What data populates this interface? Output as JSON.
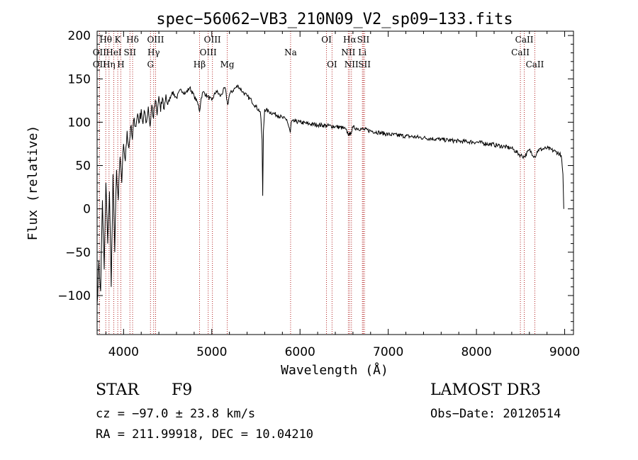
{
  "chart_data": {
    "type": "line",
    "title": "spec−56062−VB3_210N09_V2_sp09−133.fits",
    "xlabel": "Wavelength (Å)",
    "ylabel": "Flux (relative)",
    "xlim": [
      3700,
      9100
    ],
    "ylim": [
      -145,
      205
    ],
    "xticks": [
      4000,
      5000,
      6000,
      7000,
      8000,
      9000
    ],
    "yticks": [
      -100,
      -50,
      0,
      50,
      100,
      150,
      200
    ],
    "ytick_labels": [
      "−100",
      "−50",
      "0",
      "50",
      "100",
      "150",
      "200"
    ],
    "series": [
      {
        "name": "flux",
        "x": [
          3700,
          3720,
          3740,
          3760,
          3780,
          3800,
          3820,
          3840,
          3860,
          3880,
          3900,
          3920,
          3940,
          3960,
          3980,
          4000,
          4020,
          4040,
          4060,
          4080,
          4100,
          4120,
          4140,
          4160,
          4180,
          4200,
          4220,
          4240,
          4260,
          4280,
          4300,
          4320,
          4340,
          4360,
          4380,
          4400,
          4420,
          4440,
          4460,
          4480,
          4500,
          4550,
          4600,
          4650,
          4700,
          4750,
          4800,
          4850,
          4861,
          4880,
          4900,
          4950,
          5000,
          5050,
          5100,
          5150,
          5180,
          5200,
          5250,
          5300,
          5350,
          5400,
          5450,
          5500,
          5550,
          5570,
          5577,
          5585,
          5600,
          5650,
          5700,
          5750,
          5800,
          5850,
          5890,
          5900,
          5950,
          6000,
          6100,
          6200,
          6300,
          6400,
          6500,
          6563,
          6600,
          6700,
          6800,
          6900,
          7000,
          7200,
          7400,
          7600,
          7800,
          8000,
          8200,
          8400,
          8498,
          8542,
          8600,
          8662,
          8700,
          8800,
          8900,
          8960,
          8980,
          8990
        ],
        "values": [
          -110,
          -60,
          -95,
          10,
          -70,
          30,
          -40,
          20,
          -90,
          40,
          -50,
          45,
          10,
          60,
          30,
          75,
          55,
          90,
          70,
          95,
          80,
          105,
          95,
          110,
          100,
          115,
          98,
          112,
          100,
          118,
          95,
          120,
          105,
          125,
          108,
          130,
          112,
          128,
          115,
          132,
          120,
          135,
          128,
          138,
          133,
          140,
          130,
          120,
          112,
          128,
          135,
          130,
          125,
          136,
          130,
          140,
          120,
          132,
          138,
          142,
          135,
          130,
          125,
          118,
          112,
          80,
          15,
          90,
          115,
          112,
          110,
          108,
          105,
          103,
          88,
          100,
          101,
          100,
          98,
          97,
          96,
          95,
          93,
          85,
          94,
          92,
          90,
          88,
          86,
          84,
          82,
          80,
          78,
          77,
          74,
          70,
          62,
          60,
          68,
          60,
          68,
          70,
          66,
          62,
          40,
          0
        ]
      }
    ],
    "lines": [
      {
        "label": "Hθ",
        "x": 3798,
        "row": 0
      },
      {
        "label": "OII",
        "x": 3727,
        "row": 1
      },
      {
        "label": "OII",
        "x": 3727,
        "row": 2
      },
      {
        "label": "Hη",
        "x": 3835,
        "row": 2
      },
      {
        "label": "K",
        "x": 3934,
        "row": 0
      },
      {
        "label": "HeI",
        "x": 3889,
        "row": 1
      },
      {
        "label": "H",
        "x": 3969,
        "row": 2
      },
      {
        "label": "Hδ",
        "x": 4102,
        "row": 0
      },
      {
        "label": "SII",
        "x": 4072,
        "row": 1
      },
      {
        "label": "OIII",
        "x": 4363,
        "row": 0
      },
      {
        "label": "Hγ",
        "x": 4341,
        "row": 1
      },
      {
        "label": "G",
        "x": 4305,
        "row": 2
      },
      {
        "label": "Hβ",
        "x": 4861,
        "row": 2
      },
      {
        "label": "OIII",
        "x": 5007,
        "row": 0
      },
      {
        "label": "OIII",
        "x": 4959,
        "row": 1
      },
      {
        "label": "Mg",
        "x": 5175,
        "row": 2
      },
      {
        "label": "Na",
        "x": 5893,
        "row": 1
      },
      {
        "label": "OI",
        "x": 6300,
        "row": 0
      },
      {
        "label": "OI",
        "x": 6363,
        "row": 2
      },
      {
        "label": "Hα",
        "x": 6563,
        "row": 0
      },
      {
        "label": "NII",
        "x": 6548,
        "row": 1
      },
      {
        "label": "NII",
        "x": 6583,
        "row": 2
      },
      {
        "label": "SII",
        "x": 6717,
        "row": 0
      },
      {
        "label": "Li",
        "x": 6707,
        "row": 1
      },
      {
        "label": "SII",
        "x": 6731,
        "row": 2
      },
      {
        "label": "CaII",
        "x": 8542,
        "row": 0
      },
      {
        "label": "CaII",
        "x": 8498,
        "row": 1
      },
      {
        "label": "CaII",
        "x": 8662,
        "row": 2
      }
    ]
  },
  "meta": {
    "object_class": "STAR",
    "subclass": "F9",
    "survey": "LAMOST DR3",
    "cz": "cz = −97.0 ± 23.8 km/s",
    "obs_date": "Obs−Date: 20120514",
    "radec": "RA = 211.99918, DEC =  10.04210"
  }
}
